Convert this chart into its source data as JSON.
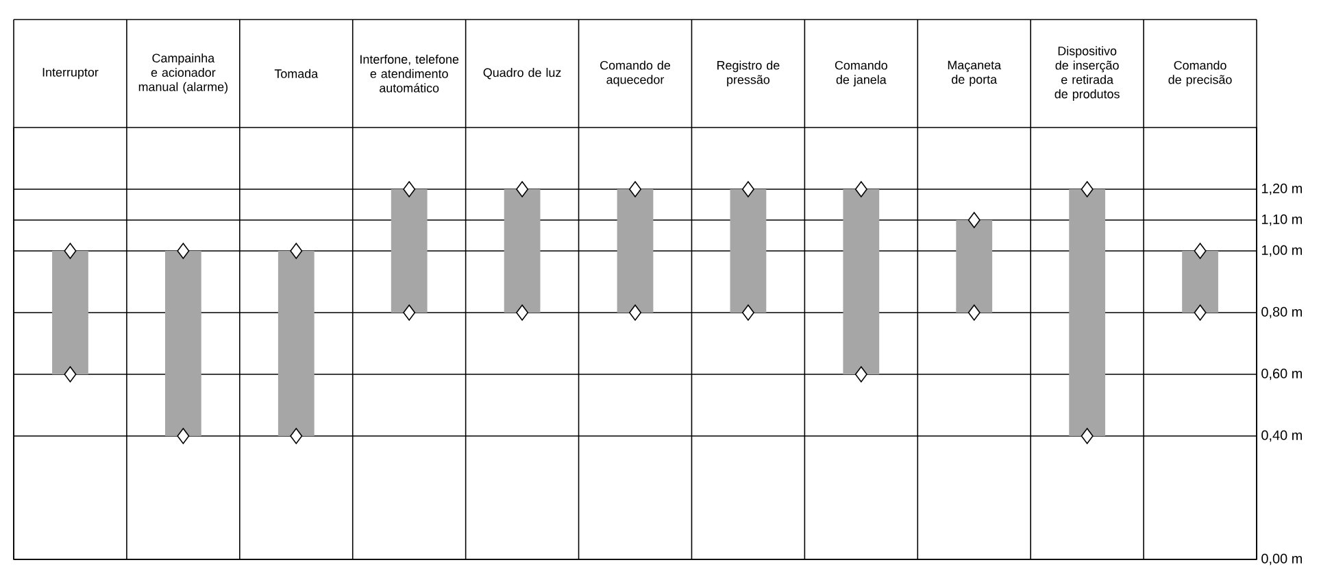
{
  "chart_data": {
    "type": "bar",
    "categories": [
      "Interruptor",
      "Campainha e acionador manual (alarme)",
      "Tomada",
      "Interfone, telefone e atendimento automático",
      "Quadro de luz",
      "Comando de aquecedor",
      "Registro de pressão",
      "Comando de janela",
      "Maçaneta de porta",
      "Dispositivo de inserção e retirada de produtos",
      "Comando de precisão"
    ],
    "series": [
      {
        "color": "#a6a6a6",
        "base": [
          0.6,
          0.4,
          0.4,
          0.8,
          0.8,
          0.8,
          0.8,
          0.6,
          0.8,
          0.4,
          0.8
        ],
        "values": [
          0.4,
          0.6,
          0.6,
          0.4,
          0.4,
          0.4,
          0.4,
          0.6,
          0.3,
          0.8,
          0.2
        ]
      },
      {
        "type": "scatter",
        "color": "#ffffff",
        "values": [
          0.6,
          0.4,
          0.4,
          0.8,
          0.8,
          0.8,
          0.8,
          0.6,
          0.8,
          0.4,
          0.8
        ]
      },
      {
        "type": "scatter",
        "color": "#ffffff",
        "values": [
          1.0,
          1.0,
          1.0,
          1.2,
          1.2,
          1.2,
          1.2,
          1.2,
          1.1,
          1.2,
          1.0
        ]
      }
    ],
    "ylim": [
      0,
      1.4
    ],
    "yticks": [
      {
        "value": 0,
        "label": "0,00 m"
      },
      {
        "value": 0.4,
        "label": "0,40 m"
      },
      {
        "value": 0.6,
        "label": "0,60 m"
      },
      {
        "value": 0.8,
        "label": "0,80 m"
      },
      {
        "value": 1.0,
        "label": "1,00 m"
      },
      {
        "value": 1.1,
        "label": "1,10 m"
      },
      {
        "value": 1.2,
        "label": "1,20 m"
      }
    ],
    "grid": "y",
    "marker": "diamond"
  }
}
